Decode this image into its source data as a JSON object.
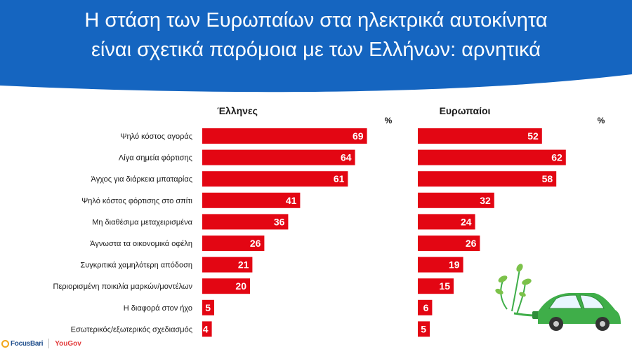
{
  "title_lines": [
    "Η στάση των Ευρωπαίων στα ηλεκτρικά αυτοκίνητα",
    "είναι σχετικά παρόμοια με των Ελλήνων: αρνητικά"
  ],
  "colors": {
    "header_bg": "#1565c0",
    "bar": "#e30613",
    "title_text": "#ffffff",
    "label_text": "#1a1a1a",
    "car": "#3fae49"
  },
  "chart_data": {
    "type": "bar",
    "orientation": "horizontal",
    "unit_label": "%",
    "categories": [
      "Ψηλό κόστος αγοράς",
      "Λίγα σημεία φόρτισης",
      "Άγχος για διάρκεια μπαταρίας",
      "Ψηλό κόστος φόρτισης στο σπίτι",
      "Μη διαθέσιμα μεταχειρισμένα",
      "Άγνωστα τα οικονομικά οφέλη",
      "Συγκριτικά χαμηλότερη απόδοση",
      "Περιορισμένη ποικιλία μαρκών/μοντέλων",
      "Η διαφορά στον ήχο",
      "Εσωτερικός/εξωτερικός σχεδιασμός"
    ],
    "series": [
      {
        "name": "Έλληνες",
        "values": [
          69,
          64,
          61,
          41,
          36,
          26,
          21,
          20,
          5,
          4
        ]
      },
      {
        "name": "Ευρωπαίοι",
        "values": [
          52,
          62,
          58,
          32,
          24,
          26,
          19,
          15,
          6,
          5
        ]
      }
    ],
    "xlim": [
      0,
      100
    ]
  },
  "footer": {
    "logo1": "FocusBari",
    "logo2": "YouGov"
  },
  "illustration": {
    "icon": "electric-car-with-plug-icon"
  }
}
